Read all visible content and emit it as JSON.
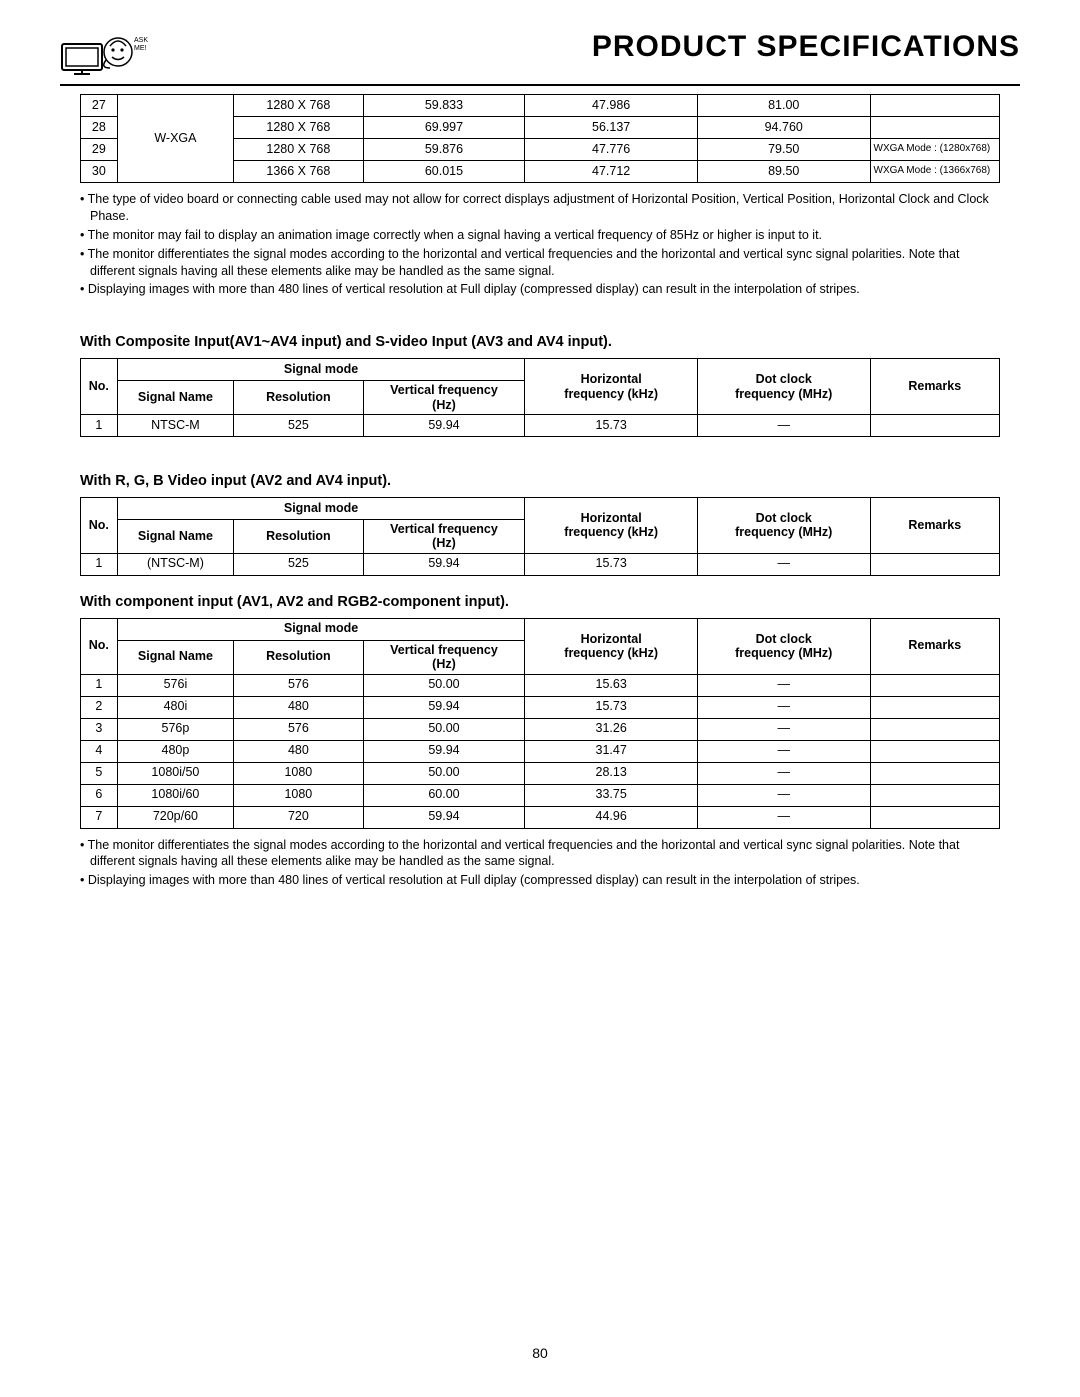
{
  "header": {
    "ask_me": "ASK\nME!",
    "title": "PRODUCT SPECIFICATIONS"
  },
  "top_table": {
    "signal_name": "W-XGA",
    "rows": [
      {
        "no": "27",
        "res": "1280 X 768",
        "vf": "59.833",
        "hf": "47.986",
        "dc": "81.00",
        "rem": ""
      },
      {
        "no": "28",
        "res": "1280 X 768",
        "vf": "69.997",
        "hf": "56.137",
        "dc": "94.760",
        "rem": ""
      },
      {
        "no": "29",
        "res": "1280 X 768",
        "vf": "59.876",
        "hf": "47.776",
        "dc": "79.50",
        "rem": "WXGA Mode : (1280x768)"
      },
      {
        "no": "30",
        "res": "1366 X 768",
        "vf": "60.015",
        "hf": "47.712",
        "dc": "89.50",
        "rem": "WXGA Mode : (1366x768)"
      }
    ]
  },
  "notes1": [
    "The type of video board or connecting cable used may not allow for correct displays adjustment of Horizontal Position, Vertical Position, Horizontal Clock and Clock Phase.",
    "The monitor may fail to display an animation image correctly when a signal having a vertical frequency of 85Hz or higher is input to it.",
    "The monitor differentiates the signal modes according to the horizontal and vertical frequencies and the horizontal and vertical sync signal polarities. Note that different signals having all these elements alike may be handled as the same signal.",
    "Displaying images with more than 480 lines of vertical resolution at Full diplay (compressed display) can result in the interpolation of stripes."
  ],
  "headers": {
    "no": "No.",
    "signal_mode": "Signal mode",
    "signal_name": "Signal Name",
    "resolution": "Resolution",
    "vfreq_l1": "Vertical frequency",
    "vfreq_l2": "(Hz)",
    "hfreq_l1": "Horizontal",
    "hfreq_l2": "frequency (kHz)",
    "dclk_l1": "Dot clock",
    "dclk_l2": "frequency (MHz)",
    "remarks": "Remarks"
  },
  "section1": {
    "title": "With Composite Input(AV1~AV4 input) and S-video Input (AV3 and AV4 input).",
    "rows": [
      {
        "no": "1",
        "name": "NTSC-M",
        "res": "525",
        "vf": "59.94",
        "hf": "15.73",
        "dc": "—",
        "rem": ""
      }
    ]
  },
  "section2": {
    "title": "With R, G, B Video input (AV2 and AV4 input).",
    "rows": [
      {
        "no": "1",
        "name": "(NTSC-M)",
        "res": "525",
        "vf": "59.94",
        "hf": "15.73",
        "dc": "—",
        "rem": ""
      }
    ]
  },
  "section3": {
    "title": "With component input (AV1, AV2 and RGB2-component input).",
    "rows": [
      {
        "no": "1",
        "name": "576i",
        "res": "576",
        "vf": "50.00",
        "hf": "15.63",
        "dc": "—",
        "rem": ""
      },
      {
        "no": "2",
        "name": "480i",
        "res": "480",
        "vf": "59.94",
        "hf": "15.73",
        "dc": "—",
        "rem": ""
      },
      {
        "no": "3",
        "name": "576p",
        "res": "576",
        "vf": "50.00",
        "hf": "31.26",
        "dc": "—",
        "rem": ""
      },
      {
        "no": "4",
        "name": "480p",
        "res": "480",
        "vf": "59.94",
        "hf": "31.47",
        "dc": "—",
        "rem": ""
      },
      {
        "no": "5",
        "name": "1080i/50",
        "res": "1080",
        "vf": "50.00",
        "hf": "28.13",
        "dc": "—",
        "rem": ""
      },
      {
        "no": "6",
        "name": "1080i/60",
        "res": "1080",
        "vf": "60.00",
        "hf": "33.75",
        "dc": "—",
        "rem": ""
      },
      {
        "no": "7",
        "name": "720p/60",
        "res": "720",
        "vf": "59.94",
        "hf": "44.96",
        "dc": "—",
        "rem": ""
      }
    ]
  },
  "notes2": [
    "The monitor differentiates the signal modes according to the horizontal and vertical frequencies and the horizontal and vertical sync signal polarities. Note that different signals having all these elements alike may be handled as the same signal.",
    "Displaying images with more than 480 lines of vertical resolution at Full diplay (compressed display) can result in the interpolation of stripes."
  ],
  "page_number": "80"
}
